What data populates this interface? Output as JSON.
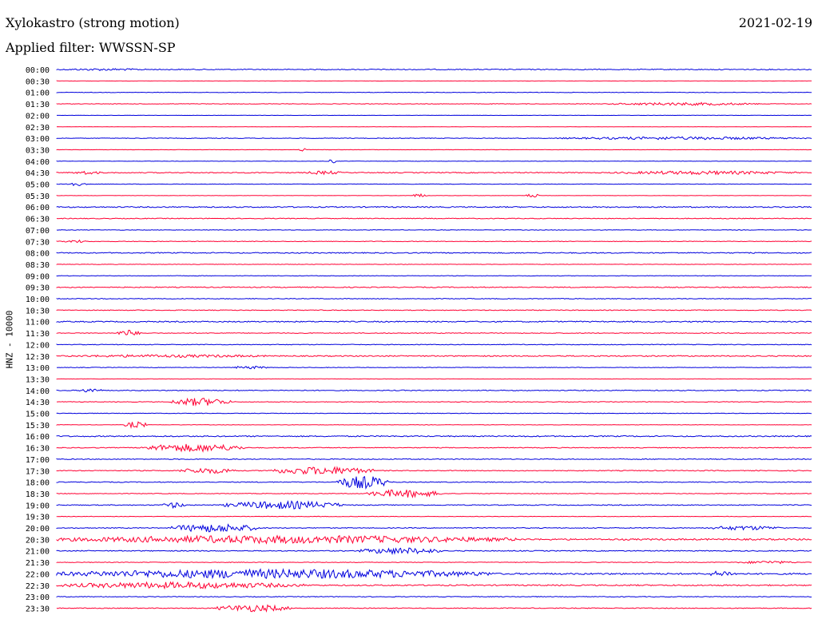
{
  "header": {
    "title": "Xylokastro (strong motion)",
    "date": "2021-02-19",
    "filter": "Applied filter: WWSSN-SP"
  },
  "chart_data": {
    "type": "line",
    "title": "Xylokastro (strong motion)",
    "ylabel": "HNZ - 10000",
    "xlabel": "",
    "grid": false,
    "colors": [
      "#0000dd",
      "#ff0033"
    ],
    "rows": [
      {
        "label": "00:00",
        "noise": 0.18,
        "bursts": [
          {
            "x": 0.0,
            "w": 0.13,
            "a": 0.15
          }
        ]
      },
      {
        "label": "00:30",
        "noise": 0.05,
        "bursts": []
      },
      {
        "label": "01:00",
        "noise": 0.1,
        "bursts": []
      },
      {
        "label": "01:30",
        "noise": 0.1,
        "bursts": [
          {
            "x": 0.73,
            "w": 0.2,
            "a": 0.2
          }
        ]
      },
      {
        "label": "02:00",
        "noise": 0.05,
        "bursts": []
      },
      {
        "label": "02:30",
        "noise": 0.05,
        "bursts": []
      },
      {
        "label": "03:00",
        "noise": 0.12,
        "bursts": [
          {
            "x": 0.66,
            "w": 0.34,
            "a": 0.2
          }
        ]
      },
      {
        "label": "03:30",
        "noise": 0.06,
        "bursts": [
          {
            "x": 0.32,
            "w": 0.01,
            "a": 0.25
          }
        ]
      },
      {
        "label": "04:00",
        "noise": 0.08,
        "bursts": [
          {
            "x": 0.36,
            "w": 0.01,
            "a": 0.3
          }
        ]
      },
      {
        "label": "04:30",
        "noise": 0.18,
        "bursts": [
          {
            "x": 0.02,
            "w": 0.04,
            "a": 0.25
          },
          {
            "x": 0.33,
            "w": 0.05,
            "a": 0.25
          },
          {
            "x": 0.73,
            "w": 0.25,
            "a": 0.25
          }
        ]
      },
      {
        "label": "05:00",
        "noise": 0.08,
        "bursts": [
          {
            "x": 0.01,
            "w": 0.03,
            "a": 0.25
          }
        ]
      },
      {
        "label": "05:30",
        "noise": 0.06,
        "bursts": [
          {
            "x": 0.47,
            "w": 0.02,
            "a": 0.25
          },
          {
            "x": 0.62,
            "w": 0.02,
            "a": 0.25
          }
        ]
      },
      {
        "label": "06:00",
        "noise": 0.22,
        "bursts": []
      },
      {
        "label": "06:30",
        "noise": 0.15,
        "bursts": []
      },
      {
        "label": "07:00",
        "noise": 0.1,
        "bursts": []
      },
      {
        "label": "07:30",
        "noise": 0.12,
        "bursts": [
          {
            "x": 0.01,
            "w": 0.03,
            "a": 0.2
          }
        ]
      },
      {
        "label": "08:00",
        "noise": 0.2,
        "bursts": []
      },
      {
        "label": "08:30",
        "noise": 0.08,
        "bursts": []
      },
      {
        "label": "09:00",
        "noise": 0.1,
        "bursts": []
      },
      {
        "label": "09:30",
        "noise": 0.18,
        "bursts": []
      },
      {
        "label": "10:00",
        "noise": 0.14,
        "bursts": []
      },
      {
        "label": "10:30",
        "noise": 0.14,
        "bursts": []
      },
      {
        "label": "11:00",
        "noise": 0.22,
        "bursts": []
      },
      {
        "label": "11:30",
        "noise": 0.14,
        "bursts": [
          {
            "x": 0.08,
            "w": 0.03,
            "a": 0.45
          }
        ]
      },
      {
        "label": "12:00",
        "noise": 0.14,
        "bursts": []
      },
      {
        "label": "12:30",
        "noise": 0.22,
        "bursts": [
          {
            "x": 0.0,
            "w": 0.3,
            "a": 0.2
          }
        ]
      },
      {
        "label": "13:00",
        "noise": 0.1,
        "bursts": [
          {
            "x": 0.23,
            "w": 0.05,
            "a": 0.2
          }
        ]
      },
      {
        "label": "13:30",
        "noise": 0.06,
        "bursts": []
      },
      {
        "label": "14:00",
        "noise": 0.16,
        "bursts": [
          {
            "x": 0.03,
            "w": 0.03,
            "a": 0.3
          }
        ]
      },
      {
        "label": "14:30",
        "noise": 0.12,
        "bursts": [
          {
            "x": 0.15,
            "w": 0.08,
            "a": 0.55
          }
        ]
      },
      {
        "label": "15:00",
        "noise": 0.1,
        "bursts": []
      },
      {
        "label": "15:30",
        "noise": 0.08,
        "bursts": [
          {
            "x": 0.09,
            "w": 0.03,
            "a": 0.45
          }
        ]
      },
      {
        "label": "16:00",
        "noise": 0.22,
        "bursts": []
      },
      {
        "label": "16:30",
        "noise": 0.16,
        "bursts": [
          {
            "x": 0.11,
            "w": 0.14,
            "a": 0.55
          }
        ]
      },
      {
        "label": "17:00",
        "noise": 0.16,
        "bursts": []
      },
      {
        "label": "17:30",
        "noise": 0.16,
        "bursts": [
          {
            "x": 0.16,
            "w": 0.08,
            "a": 0.4
          },
          {
            "x": 0.28,
            "w": 0.14,
            "a": 0.55
          }
        ]
      },
      {
        "label": "18:00",
        "noise": 0.16,
        "bursts": [
          {
            "x": 0.37,
            "w": 0.07,
            "a": 0.9
          }
        ]
      },
      {
        "label": "18:30",
        "noise": 0.12,
        "bursts": [
          {
            "x": 0.41,
            "w": 0.1,
            "a": 0.55
          }
        ]
      },
      {
        "label": "19:00",
        "noise": 0.16,
        "bursts": [
          {
            "x": 0.14,
            "w": 0.03,
            "a": 0.4
          },
          {
            "x": 0.22,
            "w": 0.16,
            "a": 0.55
          }
        ]
      },
      {
        "label": "19:30",
        "noise": 0.1,
        "bursts": []
      },
      {
        "label": "20:00",
        "noise": 0.16,
        "bursts": [
          {
            "x": 0.15,
            "w": 0.12,
            "a": 0.6
          },
          {
            "x": 0.86,
            "w": 0.1,
            "a": 0.3
          }
        ]
      },
      {
        "label": "20:30",
        "noise": 0.3,
        "bursts": [
          {
            "x": 0.0,
            "w": 0.61,
            "a": 0.55
          }
        ]
      },
      {
        "label": "21:00",
        "noise": 0.18,
        "bursts": [
          {
            "x": 0.4,
            "w": 0.11,
            "a": 0.45
          }
        ]
      },
      {
        "label": "21:30",
        "noise": 0.12,
        "bursts": [
          {
            "x": 0.9,
            "w": 0.08,
            "a": 0.2
          }
        ]
      },
      {
        "label": "22:00",
        "noise": 0.3,
        "bursts": [
          {
            "x": 0.0,
            "w": 0.58,
            "a": 0.65
          },
          {
            "x": 0.86,
            "w": 0.04,
            "a": 0.4
          }
        ]
      },
      {
        "label": "22:30",
        "noise": 0.25,
        "bursts": [
          {
            "x": 0.0,
            "w": 0.33,
            "a": 0.45
          }
        ]
      },
      {
        "label": "23:00",
        "noise": 0.14,
        "bursts": []
      },
      {
        "label": "23:30",
        "noise": 0.16,
        "bursts": [
          {
            "x": 0.21,
            "w": 0.1,
            "a": 0.5
          }
        ]
      }
    ]
  }
}
